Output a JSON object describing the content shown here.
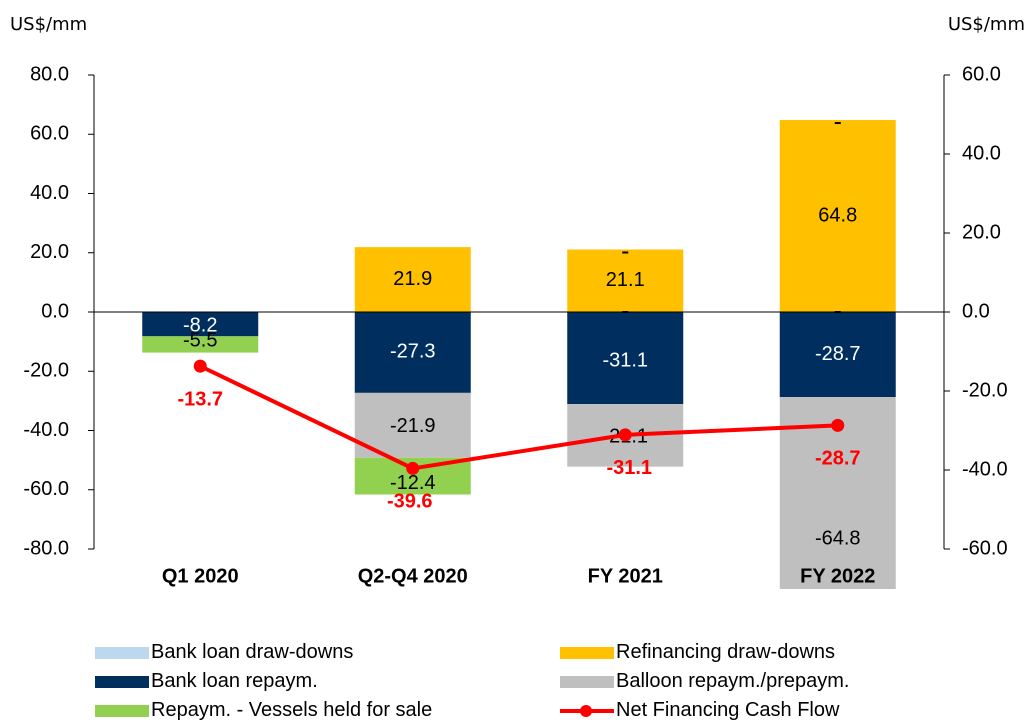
{
  "units": {
    "left": "US$/mm",
    "right": "US$/mm"
  },
  "colors": {
    "bank_draw": "#bdd7ee",
    "refi_draw": "#ffc000",
    "bank_repay": "#002f5f",
    "balloon": "#bfbfbf",
    "vessels": "#92d050",
    "net_line": "#ff0000"
  },
  "legend": [
    {
      "label": "Bank loan draw-downs",
      "color": "#bdd7ee",
      "type": "bar"
    },
    {
      "label": "Refinancing draw-downs",
      "color": "#ffc000",
      "type": "bar"
    },
    {
      "label": "Bank loan repaym.",
      "color": "#002f5f",
      "type": "bar"
    },
    {
      "label": "Balloon repaym./prepaym.",
      "color": "#bfbfbf",
      "type": "bar"
    },
    {
      "label": "Repaym. - Vessels held for sale",
      "color": "#92d050",
      "type": "bar"
    },
    {
      "label": "Net Financing Cash Flow",
      "color": "#ff0000",
      "type": "line"
    }
  ],
  "chart_data": {
    "type": "bar",
    "stacked": true,
    "categories": [
      "Q1 2020",
      "Q2-Q4 2020",
      "FY 2021",
      "FY 2022"
    ],
    "series": [
      {
        "name": "Bank loan draw-downs",
        "color": "#bdd7ee",
        "values": [
          0,
          0,
          0,
          0
        ],
        "labels": [
          "",
          "",
          "",
          ""
        ]
      },
      {
        "name": "Refinancing draw-downs",
        "color": "#ffc000",
        "values": [
          0,
          21.9,
          21.1,
          64.8
        ],
        "labels": [
          "",
          "21.9",
          "21.1",
          "64.8"
        ]
      },
      {
        "name": "Bank loan repaym.",
        "color": "#002f5f",
        "values": [
          -8.2,
          -27.3,
          -31.1,
          -28.7
        ],
        "labels": [
          "-8.2",
          "-27.3",
          "-31.1",
          "-28.7"
        ]
      },
      {
        "name": "Balloon repaym./prepaym.",
        "color": "#bfbfbf",
        "values": [
          0,
          -21.9,
          -21.1,
          -64.8
        ],
        "labels": [
          "",
          "-21.9",
          "-21.1",
          "-64.8"
        ]
      },
      {
        "name": "Repaym. - Vessels held for sale",
        "color": "#92d050",
        "values": [
          -5.5,
          -12.4,
          0,
          0
        ],
        "labels": [
          "-5.5",
          "-12.4",
          "",
          ""
        ]
      }
    ],
    "line": {
      "name": "Net Financing Cash Flow",
      "color": "#ff0000",
      "values": [
        -13.7,
        -39.6,
        -31.1,
        -28.7
      ],
      "labels": [
        "-13.7",
        "-39.6",
        "-31.1",
        "-28.7"
      ]
    },
    "left_axis": {
      "min": -80,
      "max": 80,
      "step": 20,
      "ticks": [
        "80.0",
        "60.0",
        "40.0",
        "20.0",
        "0.0",
        "-20.0",
        "-40.0",
        "-60.0",
        "-80.0"
      ]
    },
    "right_axis": {
      "min": -60,
      "max": 60,
      "step": 20,
      "ticks": [
        "60.0",
        "40.0",
        "20.0",
        "0.0",
        "-20.0",
        "-40.0",
        "-60.0"
      ]
    },
    "dash_markers": [
      {
        "category": 2,
        "value": 21.1
      },
      {
        "category": 3,
        "value": 64.8
      },
      {
        "category": 2,
        "value": 0
      },
      {
        "category": 3,
        "value": 0
      }
    ],
    "grid": false,
    "legend_position": "bottom"
  }
}
